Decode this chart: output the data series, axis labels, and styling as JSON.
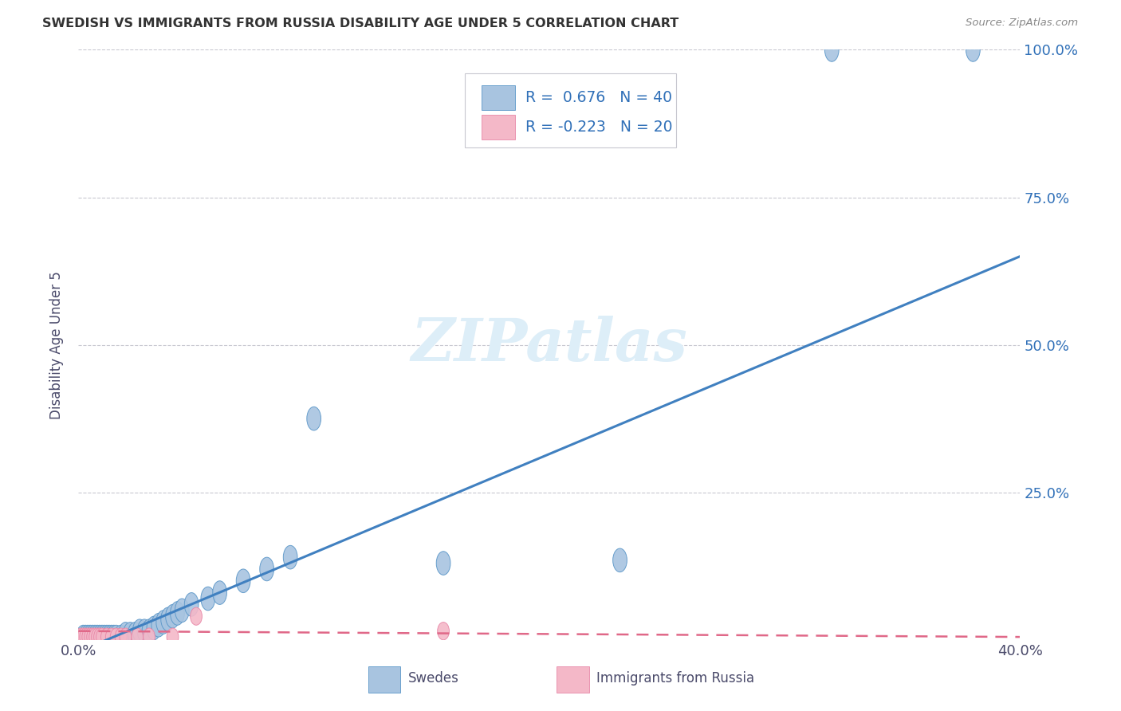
{
  "title": "SWEDISH VS IMMIGRANTS FROM RUSSIA DISABILITY AGE UNDER 5 CORRELATION CHART",
  "source": "Source: ZipAtlas.com",
  "ylabel": "Disability Age Under 5",
  "xlim": [
    0,
    0.4
  ],
  "ylim": [
    0,
    1.0
  ],
  "yticks": [
    0.0,
    0.25,
    0.5,
    0.75,
    1.0
  ],
  "ytick_labels": [
    "",
    "25.0%",
    "50.0%",
    "75.0%",
    "100.0%"
  ],
  "xticks": [
    0.0,
    0.4
  ],
  "xtick_labels": [
    "0.0%",
    "40.0%"
  ],
  "r_swedes": 0.676,
  "n_swedes": 40,
  "r_russia": -0.223,
  "n_russia": 20,
  "swedes_color": "#a8c4e0",
  "swedes_edge_color": "#5a96c8",
  "russia_color": "#f4b8c8",
  "russia_edge_color": "#e888a8",
  "trend_swedes_color": "#4080c0",
  "trend_russia_color": "#e06888",
  "background_color": "#ffffff",
  "grid_color": "#c8c8d0",
  "watermark_color": "#ddeef8",
  "legend_r_color": "#3070b8",
  "axis_label_color": "#4a4a6a",
  "title_color": "#333333",
  "swedes_x": [
    0.002,
    0.003,
    0.004,
    0.005,
    0.006,
    0.007,
    0.008,
    0.009,
    0.01,
    0.011,
    0.012,
    0.013,
    0.014,
    0.015,
    0.016,
    0.018,
    0.02,
    0.022,
    0.024,
    0.026,
    0.028,
    0.03,
    0.032,
    0.034,
    0.036,
    0.038,
    0.04,
    0.042,
    0.044,
    0.048,
    0.055,
    0.06,
    0.07,
    0.08,
    0.09,
    0.1,
    0.155,
    0.23,
    0.32,
    0.38
  ],
  "swedes_y": [
    0.005,
    0.005,
    0.005,
    0.005,
    0.005,
    0.005,
    0.005,
    0.005,
    0.005,
    0.005,
    0.005,
    0.005,
    0.005,
    0.005,
    0.005,
    0.005,
    0.01,
    0.01,
    0.01,
    0.015,
    0.015,
    0.015,
    0.02,
    0.025,
    0.03,
    0.035,
    0.04,
    0.045,
    0.05,
    0.06,
    0.07,
    0.08,
    0.1,
    0.12,
    0.14,
    0.375,
    0.13,
    0.135,
    1.0,
    1.0
  ],
  "russia_x": [
    0.001,
    0.002,
    0.003,
    0.004,
    0.005,
    0.006,
    0.007,
    0.008,
    0.009,
    0.01,
    0.012,
    0.014,
    0.016,
    0.018,
    0.02,
    0.025,
    0.03,
    0.04,
    0.05,
    0.155
  ],
  "russia_y": [
    0.005,
    0.005,
    0.005,
    0.005,
    0.005,
    0.005,
    0.005,
    0.005,
    0.005,
    0.005,
    0.005,
    0.005,
    0.005,
    0.005,
    0.005,
    0.005,
    0.005,
    0.005,
    0.04,
    0.015
  ],
  "trend_swedes_x0": 0.0,
  "trend_swedes_y0": -0.02,
  "trend_swedes_x1": 0.4,
  "trend_swedes_y1": 0.65,
  "trend_russia_x0": 0.0,
  "trend_russia_y0": 0.015,
  "trend_russia_x1": 0.4,
  "trend_russia_y1": 0.005
}
